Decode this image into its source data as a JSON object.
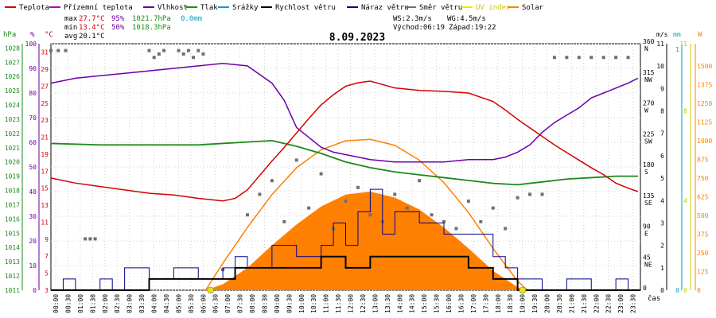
{
  "chart_data": {
    "type": "line",
    "title": "8.09.2023",
    "legend": [
      {
        "label": "Teplota",
        "color": "#d40000"
      },
      {
        "label": "Přízemní teplota",
        "color": "#b000b0"
      },
      {
        "label": "Vlhkost",
        "color": "#6a00a8"
      },
      {
        "label": "Tlak",
        "color": "#1a8a1a"
      },
      {
        "label": "Srážky",
        "color": "#00a0c8"
      },
      {
        "label": "Rychlost větru",
        "color": "#000000"
      },
      {
        "label": "Náraz větru",
        "color": "#000090"
      },
      {
        "label": "Směr větru",
        "color": "#707070"
      },
      {
        "label": "UV index",
        "color": "#e8e800"
      },
      {
        "label": "Solar",
        "color": "#ff8000"
      }
    ],
    "stats": {
      "max_label": "max",
      "max_temp": "27.7°C",
      "max_hum": "95%",
      "max_press": "1021.7hPa",
      "precip": "0.0mm",
      "min_label": "min",
      "min_temp": "13.4°C",
      "min_hum": "50%",
      "min_press": "1018.3hPa",
      "avg_label": "avg",
      "avg_temp": "20.1°C"
    },
    "wind_info": {
      "ws": "WS:2.3m/s",
      "wg": "WG:4.5m/s",
      "sunrise": "Východ:06:19",
      "sunset": "Západ:19:22"
    },
    "x_label": "čas",
    "x_ticks": [
      "00:00",
      "00:30",
      "01:00",
      "01:30",
      "02:00",
      "02:30",
      "03:00",
      "03:30",
      "04:00",
      "04:30",
      "05:00",
      "05:30",
      "06:00",
      "06:30",
      "07:00",
      "07:30",
      "08:00",
      "08:30",
      "09:00",
      "09:30",
      "10:00",
      "10:30",
      "11:00",
      "11:30",
      "12:00",
      "12:30",
      "13:00",
      "13:30",
      "14:00",
      "14:30",
      "15:00",
      "15:30",
      "16:00",
      "16:30",
      "17:00",
      "17:30",
      "18:00",
      "18:30",
      "19:00",
      "19:30",
      "20:00",
      "20:30",
      "21:00",
      "21:30",
      "22:00",
      "22:30",
      "23:00",
      "23:30"
    ],
    "axes": {
      "pressure": {
        "unit": "hPa",
        "ticks": [
          "1028",
          "1027",
          "1026",
          "1025",
          "1024",
          "1023",
          "1022",
          "1021",
          "1020",
          "1019",
          "1018",
          "1017",
          "1016",
          "1015",
          "1014",
          "1013",
          "1012",
          "1011"
        ]
      },
      "humidity": {
        "unit": "%",
        "ticks": [
          "100",
          "90",
          "80",
          "70",
          "60",
          "50",
          "40",
          "30",
          "20",
          "10",
          "0"
        ]
      },
      "temperature": {
        "unit": "°C",
        "ticks": [
          "31",
          "29",
          "27",
          "25",
          "23",
          "21",
          "19",
          "17",
          "15",
          "13",
          "11",
          "9",
          "7",
          "5",
          "3"
        ]
      },
      "direction": {
        "ticks": [
          [
            "360",
            "N"
          ],
          [
            "315",
            "NW"
          ],
          [
            "270",
            "W"
          ],
          [
            "225",
            "SW"
          ],
          [
            "180",
            "S"
          ],
          [
            "135",
            "SE"
          ],
          [
            "90",
            "E"
          ],
          [
            "45",
            "NE"
          ],
          [
            "0",
            ""
          ]
        ]
      },
      "wind_speed": {
        "unit": "m/s",
        "ticks": [
          "11",
          "10",
          "9",
          "8",
          "7",
          "6",
          "5",
          "4",
          "3",
          "2",
          "1",
          "0"
        ]
      },
      "precip": {
        "unit": "mm",
        "ticks": [
          "1",
          "0"
        ]
      },
      "uv": {
        "unit": "",
        "ticks": [
          "11",
          "",
          "8",
          "",
          "",
          "4",
          "",
          "",
          "0"
        ]
      },
      "solar": {
        "unit": "W",
        "ticks": [
          "1500",
          "1375",
          "1250",
          "1125",
          "1000",
          "875",
          "750",
          "625",
          "500",
          "375",
          "250",
          "125",
          "0"
        ]
      }
    },
    "series": [
      {
        "name": "Teplota",
        "axis": "temperature",
        "x": [
          0,
          1,
          2,
          3,
          4,
          5,
          6,
          7,
          7.5,
          8,
          8.5,
          9,
          9.5,
          10,
          10.5,
          11,
          11.5,
          12,
          12.5,
          13,
          13.5,
          14,
          15,
          16,
          17,
          18,
          18.5,
          19,
          19.5,
          20,
          20.5,
          21,
          21.5,
          22,
          22.5,
          23,
          23.5,
          23.9
        ],
        "y": [
          16.2,
          15.6,
          15.2,
          14.8,
          14.4,
          14.2,
          13.8,
          13.5,
          13.8,
          14.8,
          16.5,
          18.2,
          19.8,
          21.5,
          23.2,
          24.8,
          26.0,
          27.0,
          27.4,
          27.6,
          27.2,
          26.8,
          26.5,
          26.4,
          26.2,
          25.2,
          24.2,
          23.1,
          22.1,
          21.1,
          20.1,
          19.2,
          18.3,
          17.4,
          16.6,
          15.6,
          15.0,
          14.6
        ]
      },
      {
        "name": "Vlhkost",
        "axis": "humidity",
        "x": [
          0,
          1,
          2,
          3,
          4,
          5,
          6,
          7,
          8,
          9,
          9.5,
          10,
          10.5,
          11,
          11.5,
          12,
          12.5,
          13,
          14,
          15,
          16,
          17,
          18,
          18.5,
          19,
          19.5,
          20,
          20.5,
          21,
          21.5,
          22,
          22.5,
          23,
          23.5,
          23.9
        ],
        "y": [
          84,
          86,
          87,
          88,
          89,
          90,
          91,
          92,
          91,
          84,
          77,
          66,
          62,
          58,
          56,
          55,
          54,
          53,
          52,
          52,
          52,
          53,
          53,
          54,
          56,
          59,
          64,
          68,
          71,
          74,
          78,
          80,
          82,
          84,
          86
        ]
      },
      {
        "name": "Tlak",
        "axis": "pressure",
        "x": [
          0,
          2,
          4,
          6,
          8,
          9,
          10,
          11,
          12,
          13,
          14,
          15,
          16,
          17,
          18,
          19,
          20,
          21,
          22,
          23,
          23.9
        ],
        "y": [
          1021.3,
          1021.2,
          1021.2,
          1021.2,
          1021.4,
          1021.5,
          1021.1,
          1020.6,
          1020.0,
          1019.6,
          1019.3,
          1019.1,
          1018.9,
          1018.7,
          1018.5,
          1018.4,
          1018.6,
          1018.8,
          1018.9,
          1019.0,
          1019.0
        ]
      },
      {
        "name": "Solar",
        "axis": "solar",
        "style": "area",
        "x": [
          6.3,
          7,
          8,
          9,
          10,
          11,
          12,
          13,
          14,
          15,
          16,
          17,
          18,
          19,
          19.4
        ],
        "y": [
          0,
          40,
          150,
          300,
          440,
          560,
          640,
          660,
          620,
          540,
          420,
          280,
          130,
          20,
          0
        ]
      },
      {
        "name": "Solar",
        "axis": "solar",
        "style": "line",
        "x": [
          6.3,
          7,
          8,
          9,
          10,
          11,
          12,
          13,
          14,
          15,
          16,
          17,
          18,
          19,
          19.4
        ],
        "y": [
          0,
          180,
          420,
          640,
          820,
          940,
          1000,
          1010,
          970,
          870,
          720,
          520,
          280,
          60,
          0
        ]
      },
      {
        "name": "Rychlost větru",
        "axis": "wind_speed",
        "x": [
          0,
          3,
          4,
          5,
          6,
          7,
          7.5,
          8,
          9,
          10,
          11,
          12,
          13,
          14,
          15,
          16,
          17,
          18,
          19,
          20,
          23.9
        ],
        "y": [
          0,
          0,
          0.5,
          0.5,
          0.5,
          0.5,
          1,
          1,
          1,
          1,
          1.5,
          1,
          1.5,
          1.5,
          1.5,
          1.5,
          1,
          0.5,
          0,
          0,
          0
        ]
      },
      {
        "name": "Náraz větru",
        "axis": "wind_speed",
        "x": [
          0,
          0.5,
          1,
          2,
          2.5,
          3,
          4,
          5,
          6,
          7,
          7.5,
          8,
          9,
          10,
          11,
          11.5,
          12,
          12.5,
          13,
          13.5,
          14,
          15,
          16,
          17,
          18,
          18.5,
          19,
          20,
          21,
          22,
          23,
          23.5
        ],
        "y": [
          0,
          0.5,
          0,
          0.5,
          0,
          1,
          0.5,
          1,
          0.5,
          1,
          1.5,
          1,
          2,
          1.5,
          2,
          3,
          2,
          3.5,
          4.5,
          2.5,
          3.5,
          3,
          2.5,
          2.5,
          1.5,
          1,
          0.5,
          0,
          0.5,
          0,
          0.5,
          0
        ]
      },
      {
        "name": "Směr větru",
        "axis": "direction",
        "style": "points",
        "x": [
          0,
          0.3,
          0.6,
          1.4,
          1.6,
          1.8,
          4,
          4.2,
          4.4,
          4.6,
          5.2,
          5.4,
          5.6,
          5.8,
          6.0,
          6.2,
          7,
          8,
          8.5,
          9,
          9.5,
          10,
          10.5,
          11,
          11.5,
          12,
          12.5,
          13,
          13.5,
          14,
          14.5,
          15,
          15.5,
          16,
          16.5,
          17,
          17.5,
          18,
          18.5,
          19,
          19.5,
          20,
          20.5,
          21,
          21.5,
          22,
          22.5,
          23,
          23.5
        ],
        "y": [
          350,
          350,
          350,
          75,
          75,
          75,
          350,
          340,
          345,
          350,
          350,
          345,
          350,
          340,
          350,
          345,
          30,
          110,
          140,
          160,
          100,
          190,
          120,
          170,
          90,
          130,
          150,
          110,
          100,
          140,
          120,
          160,
          110,
          100,
          90,
          130,
          100,
          120,
          90,
          135,
          140,
          140,
          340,
          340,
          340,
          340,
          340,
          340,
          340
        ]
      },
      {
        "name": "UV index",
        "axis": "uv",
        "style": "points",
        "x": [
          6.5,
          19.2
        ],
        "y": [
          0,
          0
        ]
      }
    ]
  }
}
